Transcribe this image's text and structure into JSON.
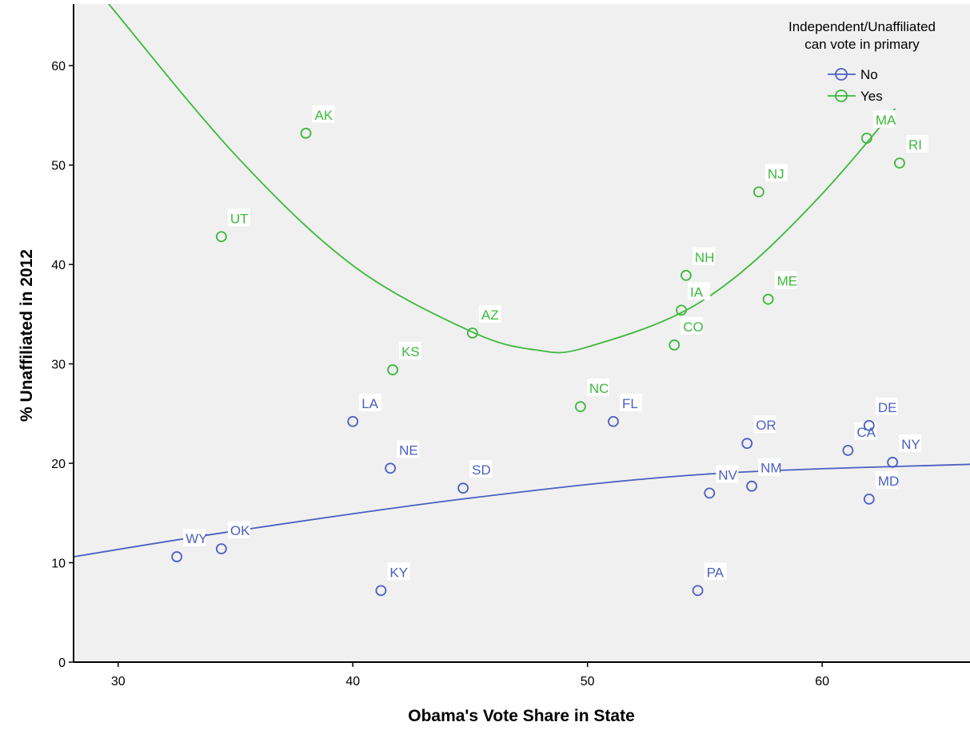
{
  "chart_data": {
    "type": "scatter",
    "xlabel": "Obama's Vote Share in State",
    "ylabel": "% Unaffiliated in 2012",
    "xlim": [
      28.1,
      66.3
    ],
    "ylim": [
      0,
      66.2
    ],
    "xticks": [
      30,
      40,
      50,
      60
    ],
    "yticks": [
      0,
      10,
      20,
      30,
      40,
      50,
      60
    ],
    "grid": false,
    "legend": {
      "title_lines": [
        "Independent/Unaffiliated",
        "can vote in primary"
      ],
      "placement": "top-right"
    },
    "colors": {
      "No": "#4b5fc3",
      "Yes": "#3cb83c",
      "plot_bg": "#f0f0f0"
    },
    "series": [
      {
        "name": "No",
        "fit": {
          "type": "quadratic",
          "x": [
            28.1,
            35,
            45,
            55,
            66.3
          ],
          "y": [
            10.6,
            13.2,
            16.5,
            18.9,
            19.9
          ]
        },
        "points": [
          {
            "label": "WY",
            "x": 32.5,
            "y": 10.6
          },
          {
            "label": "OK",
            "x": 34.4,
            "y": 11.4
          },
          {
            "label": "KY",
            "x": 41.2,
            "y": 7.2
          },
          {
            "label": "LA",
            "x": 40.0,
            "y": 24.2
          },
          {
            "label": "NE",
            "x": 41.6,
            "y": 19.5
          },
          {
            "label": "SD",
            "x": 44.7,
            "y": 17.5
          },
          {
            "label": "FL",
            "x": 51.1,
            "y": 24.2
          },
          {
            "label": "PA",
            "x": 54.7,
            "y": 7.2
          },
          {
            "label": "NV",
            "x": 55.2,
            "y": 17.0
          },
          {
            "label": "NM",
            "x": 57.0,
            "y": 17.7
          },
          {
            "label": "OR",
            "x": 56.8,
            "y": 22.0
          },
          {
            "label": "CA",
            "x": 61.1,
            "y": 21.3
          },
          {
            "label": "DE",
            "x": 62.0,
            "y": 23.8
          },
          {
            "label": "NY",
            "x": 63.0,
            "y": 20.1
          },
          {
            "label": "MD",
            "x": 62.0,
            "y": 16.4
          }
        ]
      },
      {
        "name": "Yes",
        "fit": {
          "type": "quadratic",
          "x": [
            29.6,
            35,
            40,
            45,
            47.8,
            50,
            55,
            60,
            66.3
          ],
          "y": [
            66.2,
            51.0,
            39.9,
            33.3,
            31.4,
            31.7,
            36.5,
            47.1,
            65.0
          ]
        },
        "points": [
          {
            "label": "AK",
            "x": 38.0,
            "y": 53.2
          },
          {
            "label": "UT",
            "x": 34.4,
            "y": 42.8
          },
          {
            "label": "KS",
            "x": 41.7,
            "y": 29.4
          },
          {
            "label": "AZ",
            "x": 45.1,
            "y": 33.1
          },
          {
            "label": "NC",
            "x": 49.7,
            "y": 25.7
          },
          {
            "label": "CO",
            "x": 53.7,
            "y": 31.9
          },
          {
            "label": "IA",
            "x": 54.0,
            "y": 35.4
          },
          {
            "label": "NH",
            "x": 54.2,
            "y": 38.9
          },
          {
            "label": "ME",
            "x": 57.7,
            "y": 36.5
          },
          {
            "label": "NJ",
            "x": 57.3,
            "y": 47.3
          },
          {
            "label": "MA",
            "x": 61.9,
            "y": 52.7
          },
          {
            "label": "RI",
            "x": 63.3,
            "y": 50.2
          }
        ]
      }
    ]
  }
}
